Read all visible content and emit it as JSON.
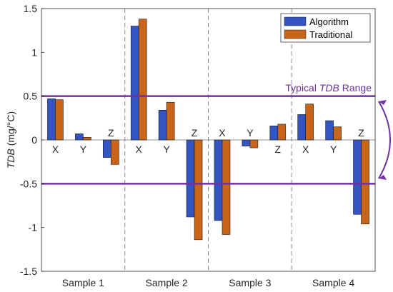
{
  "chart_data": {
    "type": "bar",
    "groups": [
      "Sample 1",
      "Sample 2",
      "Sample 3",
      "Sample 4"
    ],
    "axes_labels": [
      "X",
      "Y",
      "Z"
    ],
    "ylabel_italic": "TDB",
    "ylabel_unit": " (mg/°C)",
    "ylim": [
      -1.5,
      1.5
    ],
    "yticks": [
      -1.5,
      -1,
      -0.5,
      0,
      0.5,
      1,
      1.5
    ],
    "series": [
      {
        "name": "Algorithm",
        "color": "#3355c4",
        "values": [
          0.47,
          0.07,
          -0.2,
          1.3,
          0.34,
          -0.88,
          -0.92,
          -0.07,
          0.16,
          0.29,
          0.22,
          -0.85
        ]
      },
      {
        "name": "Traditional",
        "color": "#c8651b",
        "values": [
          0.46,
          0.03,
          -0.28,
          1.38,
          0.43,
          -1.14,
          -1.08,
          -0.09,
          0.18,
          0.41,
          0.15,
          -0.96
        ]
      }
    ],
    "reference_lines": [
      0.5,
      -0.5
    ],
    "reference_color": "#7030a0",
    "annotation_prefix": "Typical ",
    "annotation_italic": "TDB",
    "annotation_suffix": " Range",
    "legend_position": "top-right",
    "grid": false
  }
}
